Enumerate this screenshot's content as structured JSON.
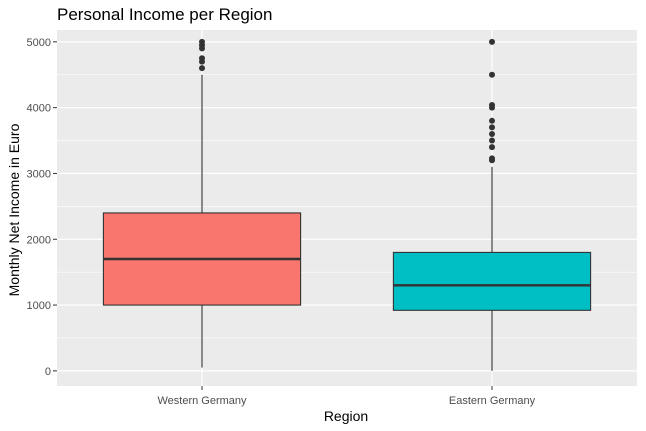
{
  "chart_data": {
    "type": "boxplot",
    "title": "Personal Income per Region",
    "xlabel": "Region",
    "ylabel": "Monthly Net Income in Euro",
    "ylim": [
      -230,
      5180
    ],
    "yticks": [
      0,
      1000,
      2000,
      3000,
      4000,
      5000
    ],
    "grid": true,
    "legend": "none",
    "categories": [
      "Western Germany",
      "Eastern Germany"
    ],
    "boxes": [
      {
        "category": "Western Germany",
        "color": "#F8766D",
        "whisker_low": 50,
        "q1": 1000,
        "median": 1700,
        "q3": 2400,
        "whisker_high": 4500,
        "outliers": [
          4600,
          4700,
          4750,
          4900,
          4950,
          5000
        ]
      },
      {
        "category": "Eastern Germany",
        "color": "#00BFC4",
        "whisker_low": 0,
        "q1": 920,
        "median": 1300,
        "q3": 1800,
        "whisker_high": 3100,
        "outliers": [
          3200,
          3230,
          3400,
          3500,
          3600,
          3700,
          3800,
          4000,
          4040,
          4500,
          5000
        ]
      }
    ]
  }
}
